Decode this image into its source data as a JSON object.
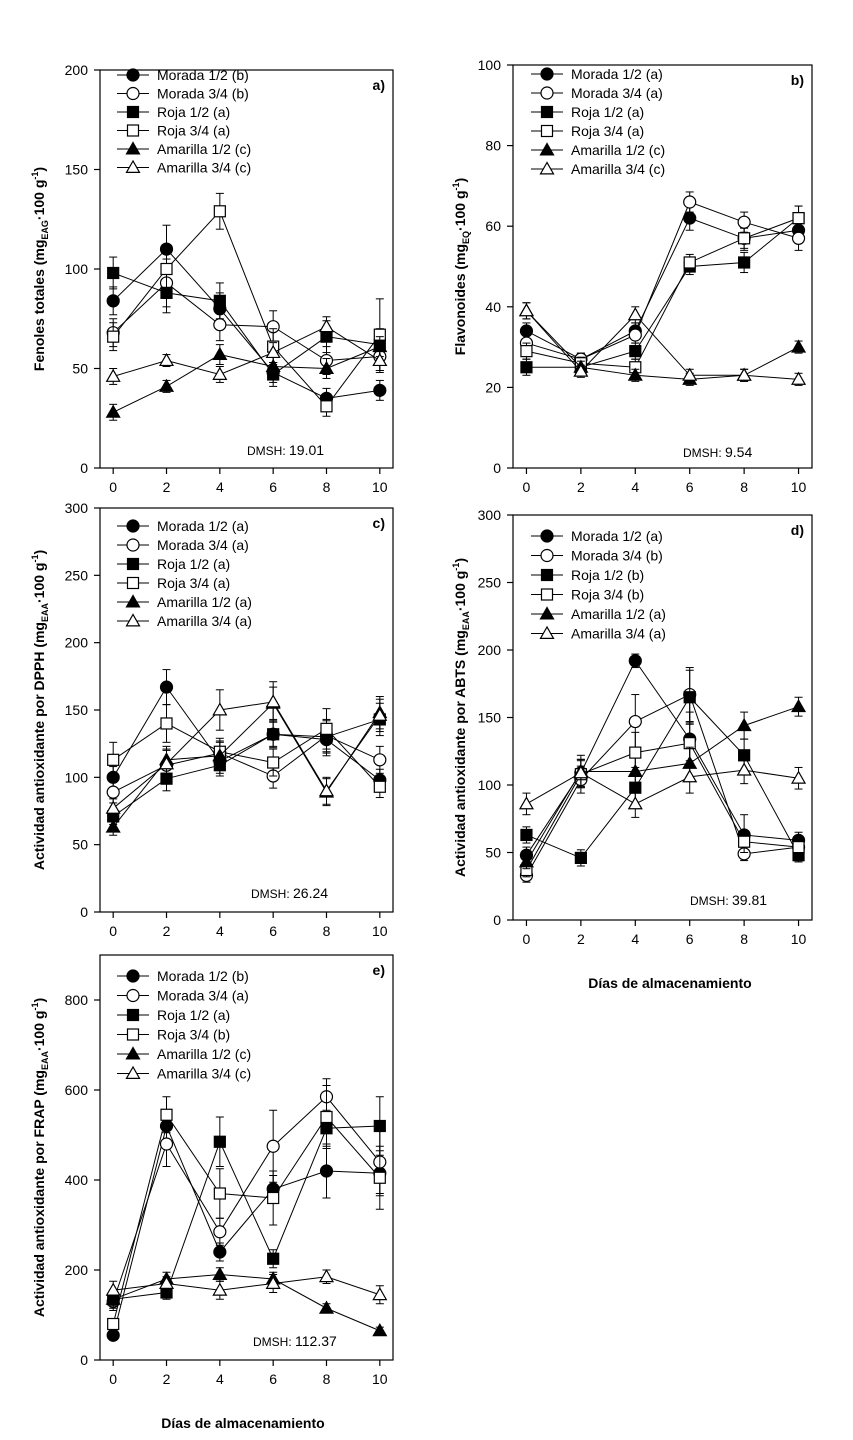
{
  "figure": {
    "xlabel": "Días de almacenamiento",
    "dmsh_prefix": "DMSH:"
  },
  "chart_data": [
    {
      "panel": "a)",
      "type": "line",
      "ylabel": "Fenoles totales (mgEAG·100 g-1)",
      "ylabel_main": "Fenoles totales (mg",
      "ylabel_sub": "EAG",
      "ylabel_mid": "·100 g",
      "ylabel_sup": "-1",
      "ylabel_end": ")",
      "x": [
        0,
        2,
        4,
        6,
        8,
        10
      ],
      "xticks": [
        "0",
        "2",
        "4",
        "6",
        "8",
        "10"
      ],
      "ylim": [
        0,
        200
      ],
      "yticks": [
        "0",
        "50",
        "100",
        "150",
        "200"
      ],
      "dmsh_value": "19.01",
      "series": [
        {
          "name": "Morada 1/2 (b)",
          "marker": "circle",
          "fill": "filled",
          "values": [
            84,
            110,
            80,
            48,
            35,
            39
          ],
          "err": [
            7,
            12,
            8,
            5,
            5,
            5
          ]
        },
        {
          "name": "Morada 3/4 (b)",
          "marker": "circle",
          "fill": "open",
          "values": [
            68,
            93,
            72,
            71,
            54,
            56
          ],
          "err": [
            7,
            12,
            8,
            8,
            7,
            8
          ]
        },
        {
          "name": "Roja 1/2 (a)",
          "marker": "square",
          "fill": "filled",
          "values": [
            98,
            88,
            84,
            47,
            66,
            62
          ],
          "err": [
            8,
            10,
            9,
            6,
            8,
            8
          ]
        },
        {
          "name": "Roja 3/4 (a)",
          "marker": "square",
          "fill": "open",
          "values": [
            66,
            100,
            129,
            61,
            31,
            67
          ],
          "err": [
            7,
            10,
            9,
            9,
            5,
            18
          ]
        },
        {
          "name": "Amarilla 1/2 (c)",
          "marker": "triangle",
          "fill": "filled",
          "values": [
            28,
            41,
            57,
            51,
            50,
            61
          ],
          "err": [
            4,
            3,
            5,
            5,
            5,
            5
          ]
        },
        {
          "name": "Amarilla 3/4 (c)",
          "marker": "triangle",
          "fill": "open",
          "values": [
            46,
            54,
            47,
            58,
            71,
            54
          ],
          "err": [
            4,
            3,
            4,
            5,
            5,
            5
          ]
        }
      ]
    },
    {
      "panel": "b)",
      "type": "line",
      "ylabel": "Flavonoides (mgEQ·100 g-1)",
      "ylabel_main": "Flavonoides (mg",
      "ylabel_sub": "EQ",
      "ylabel_mid": "·100 g",
      "ylabel_sup": "-1",
      "ylabel_end": ")",
      "x": [
        0,
        2,
        4,
        6,
        8,
        10
      ],
      "xticks": [
        "0",
        "2",
        "4",
        "6",
        "8",
        "10"
      ],
      "ylim": [
        0,
        100
      ],
      "yticks": [
        "0",
        "20",
        "40",
        "60",
        "80",
        "100"
      ],
      "dmsh_value": "9.54",
      "series": [
        {
          "name": "Morada 1/2 (a)",
          "marker": "circle",
          "fill": "filled",
          "values": [
            34,
            27,
            34,
            62,
            57,
            59
          ],
          "err": [
            2,
            1.5,
            2,
            3,
            3,
            3
          ]
        },
        {
          "name": "Morada 3/4 (a)",
          "marker": "circle",
          "fill": "open",
          "values": [
            31,
            27,
            33,
            66,
            61,
            57
          ],
          "err": [
            2,
            1.5,
            2,
            2.5,
            2.5,
            3
          ]
        },
        {
          "name": "Roja 1/2 (a)",
          "marker": "square",
          "fill": "filled",
          "values": [
            25,
            25,
            29,
            50,
            51,
            62
          ],
          "err": [
            2,
            1.5,
            2,
            2,
            2.5,
            3
          ]
        },
        {
          "name": "Roja 3/4 (a)",
          "marker": "square",
          "fill": "open",
          "values": [
            29,
            26,
            25,
            51,
            57,
            62
          ],
          "err": [
            2,
            1.5,
            2,
            2,
            2.5,
            3
          ]
        },
        {
          "name": "Amarilla 1/2 (c)",
          "marker": "triangle",
          "fill": "filled",
          "values": [
            39,
            25,
            23,
            22,
            23,
            30
          ],
          "err": [
            2,
            1.5,
            1.5,
            1.5,
            1.5,
            1.5
          ]
        },
        {
          "name": "Amarilla 3/4 (c)",
          "marker": "triangle",
          "fill": "open",
          "values": [
            39,
            24,
            38,
            23,
            23,
            22
          ],
          "err": [
            2,
            1.5,
            2,
            1.5,
            1.5,
            1.5
          ]
        }
      ]
    },
    {
      "panel": "c)",
      "type": "line",
      "ylabel": "Actividad antioxidante por DPPH (mgEAA·100 g-1)",
      "ylabel_main": "Actividad antioxidante por DPPH (mg",
      "ylabel_sub": "EAA",
      "ylabel_mid": "·100 g",
      "ylabel_sup": "-1",
      "ylabel_end": ")",
      "x": [
        0,
        2,
        4,
        6,
        8,
        10
      ],
      "xticks": [
        "0",
        "2",
        "4",
        "6",
        "8",
        "10"
      ],
      "ylim": [
        0,
        300
      ],
      "yticks": [
        "0",
        "50",
        "100",
        "150",
        "200",
        "250",
        "300"
      ],
      "dmsh_value": "26.24",
      "series": [
        {
          "name": "Morada 1/2 (a)",
          "marker": "circle",
          "fill": "filled",
          "values": [
            100,
            167,
            112,
            132,
            128,
            98
          ],
          "err": [
            8,
            13,
            9,
            10,
            12,
            8
          ]
        },
        {
          "name": "Morada 3/4 (a)",
          "marker": "circle",
          "fill": "open",
          "values": [
            89,
            109,
            118,
            101,
            131,
            113
          ],
          "err": [
            8,
            12,
            9,
            9,
            12,
            10
          ]
        },
        {
          "name": "Roja 1/2 (a)",
          "marker": "square",
          "fill": "filled",
          "values": [
            71,
            99,
            109,
            132,
            130,
            143
          ],
          "err": [
            6,
            9,
            8,
            9,
            12,
            12
          ]
        },
        {
          "name": "Roja 3/4 (a)",
          "marker": "square",
          "fill": "open",
          "values": [
            113,
            140,
            119,
            111,
            136,
            93
          ],
          "err": [
            13,
            14,
            10,
            10,
            15,
            8
          ]
        },
        {
          "name": "Amarilla 1/2 (a)",
          "marker": "triangle",
          "fill": "filled",
          "values": [
            63,
            113,
            116,
            155,
            89,
            148
          ],
          "err": [
            6,
            10,
            10,
            12,
            10,
            12
          ]
        },
        {
          "name": "Amarilla 3/4 (a)",
          "marker": "triangle",
          "fill": "open",
          "values": [
            77,
            110,
            150,
            156,
            90,
            146
          ],
          "err": [
            7,
            10,
            15,
            15,
            10,
            12
          ]
        }
      ]
    },
    {
      "panel": "d)",
      "type": "line",
      "ylabel": "Actividad antioxidante por ABTS (mgEAA·100 g-1)",
      "ylabel_main": "Actividad antioxidante por ABTS (mg",
      "ylabel_sub": "EAA",
      "ylabel_mid": "·100 g",
      "ylabel_sup": "-1",
      "ylabel_end": ")",
      "x": [
        0,
        2,
        4,
        6,
        8,
        10
      ],
      "xticks": [
        "0",
        "2",
        "4",
        "6",
        "8",
        "10"
      ],
      "ylim": [
        0,
        300
      ],
      "yticks": [
        "0",
        "50",
        "100",
        "150",
        "200",
        "250",
        "300"
      ],
      "dmsh_value": "39.81",
      "series": [
        {
          "name": "Morada 1/2 (a)",
          "marker": "circle",
          "fill": "filled",
          "values": [
            48,
            109,
            192,
            134,
            63,
            59
          ],
          "err": [
            6,
            10,
            5,
            20,
            15,
            6
          ]
        },
        {
          "name": "Morada 3/4 (b)",
          "marker": "circle",
          "fill": "open",
          "values": [
            33,
            104,
            147,
            167,
            49,
            54
          ],
          "err": [
            5,
            10,
            20,
            20,
            5,
            5
          ]
        },
        {
          "name": "Roja 1/2 (b)",
          "marker": "square",
          "fill": "filled",
          "values": [
            63,
            46,
            98,
            165,
            122,
            48
          ],
          "err": [
            6,
            6,
            15,
            20,
            12,
            5
          ]
        },
        {
          "name": "Roja 3/4 (b)",
          "marker": "square",
          "fill": "open",
          "values": [
            37,
            108,
            124,
            131,
            58,
            54
          ],
          "err": [
            5,
            10,
            15,
            15,
            8,
            5
          ]
        },
        {
          "name": "Amarilla 1/2 (a)",
          "marker": "triangle",
          "fill": "filled",
          "values": [
            43,
            110,
            110,
            116,
            144,
            158
          ],
          "err": [
            5,
            12,
            10,
            12,
            10,
            7
          ]
        },
        {
          "name": "Amarilla 3/4 (a)",
          "marker": "triangle",
          "fill": "open",
          "values": [
            86,
            109,
            86,
            106,
            111,
            105
          ],
          "err": [
            8,
            10,
            10,
            12,
            10,
            8
          ]
        }
      ]
    },
    {
      "panel": "e)",
      "type": "line",
      "ylabel": "Actividad antioxidante por FRAP (mgEAA·100 g-1)",
      "ylabel_main": "Actividad antioxidante por FRAP (mg",
      "ylabel_sub": "EAA",
      "ylabel_mid": "·100 g",
      "ylabel_sup": "-1",
      "ylabel_end": ")",
      "x": [
        0,
        2,
        4,
        6,
        8,
        10
      ],
      "xticks": [
        "0",
        "2",
        "4",
        "6",
        "8",
        "10"
      ],
      "ylim": [
        0,
        900
      ],
      "yticks": [
        "0",
        "200",
        "400",
        "600",
        "800"
      ],
      "dmsh_value": "112.37",
      "series": [
        {
          "name": "Morada 1/2 (b)",
          "marker": "circle",
          "fill": "filled",
          "values": [
            55,
            520,
            240,
            380,
            420,
            415
          ],
          "err": [
            10,
            30,
            20,
            30,
            60,
            50
          ]
        },
        {
          "name": "Morada 3/4 (a)",
          "marker": "circle",
          "fill": "open",
          "values": [
            130,
            480,
            285,
            475,
            585,
            440
          ],
          "err": [
            20,
            50,
            30,
            80,
            40,
            70
          ]
        },
        {
          "name": "Roja 1/2 (a)",
          "marker": "square",
          "fill": "filled",
          "values": [
            135,
            150,
            485,
            225,
            515,
            520
          ],
          "err": [
            15,
            15,
            55,
            20,
            40,
            65
          ]
        },
        {
          "name": "Roja 3/4 (b)",
          "marker": "square",
          "fill": "open",
          "values": [
            80,
            545,
            370,
            360,
            540,
            405
          ],
          "err": [
            10,
            40,
            55,
            60,
            70,
            70
          ]
        },
        {
          "name": "Amarilla 1/2 (c)",
          "marker": "triangle",
          "fill": "filled",
          "values": [
            135,
            180,
            190,
            180,
            115,
            65
          ],
          "err": [
            20,
            15,
            15,
            15,
            10,
            8
          ]
        },
        {
          "name": "Amarilla 3/4 (c)",
          "marker": "triangle",
          "fill": "open",
          "values": [
            155,
            170,
            155,
            170,
            185,
            145
          ],
          "err": [
            20,
            15,
            20,
            20,
            15,
            20
          ]
        }
      ]
    }
  ]
}
